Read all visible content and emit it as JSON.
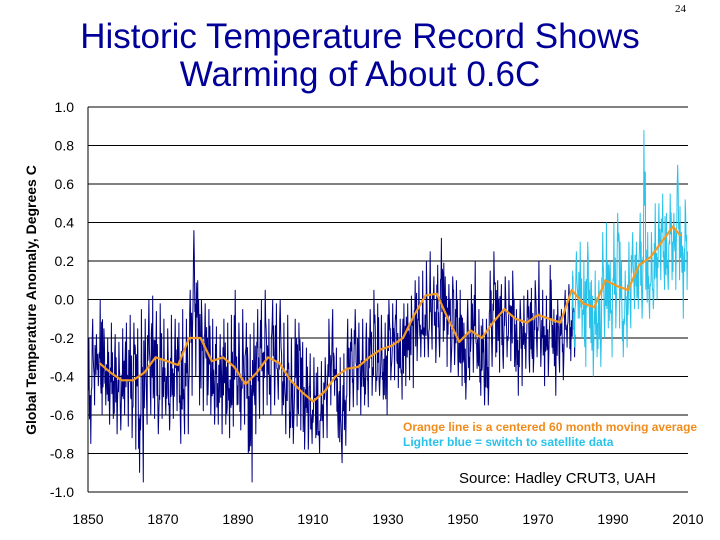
{
  "slide_number": "24",
  "title_lines": [
    "Historic Temperature Record Shows",
    "Warming of About 0.6C"
  ],
  "colors": {
    "title": "#000099",
    "monthly_series": "#000080",
    "satellite_series": "#28c2ea",
    "moving_average": "#f39a23",
    "gridline": "#000000"
  },
  "chart_data": {
    "type": "line",
    "title": "",
    "xlabel": "",
    "ylabel": "Global Temperature Anomaly, Degrees C",
    "xlim": [
      1850,
      2010
    ],
    "ylim": [
      -1.0,
      1.0
    ],
    "x_ticks": [
      "1850",
      "1870",
      "1890",
      "1910",
      "1930",
      "1950",
      "1970",
      "1990",
      "2010"
    ],
    "y_ticks": [
      "1.0",
      "0.8",
      "0.6",
      "0.4",
      "0.2",
      "0.0",
      "-0.2",
      "-0.4",
      "-0.6",
      "-0.8",
      "-1.0"
    ],
    "grid": "horizontal",
    "annotations": [
      "Orange line is a centered 60 month moving average",
      "Lighter blue = switch to satellite data",
      "Source:  Hadley CRUT3, UAH"
    ],
    "series": [
      {
        "name": "Hadley CRUT3 monthly",
        "x": [
          1850,
          1851,
          1852,
          1853,
          1854,
          1855,
          1856,
          1857,
          1858,
          1859,
          1860,
          1861,
          1862,
          1863,
          1864,
          1865,
          1866,
          1867,
          1868,
          1869,
          1870,
          1871,
          1872,
          1873,
          1874,
          1875,
          1876,
          1877,
          1878,
          1879,
          1880,
          1881,
          1882,
          1883,
          1884,
          1885,
          1886,
          1887,
          1888,
          1889,
          1890,
          1891,
          1892,
          1893,
          1894,
          1895,
          1896,
          1897,
          1898,
          1899,
          1900,
          1901,
          1902,
          1903,
          1904,
          1905,
          1906,
          1907,
          1908,
          1909,
          1910,
          1911,
          1912,
          1913,
          1914,
          1915,
          1916,
          1917,
          1918,
          1919,
          1920,
          1921,
          1922,
          1923,
          1924,
          1925,
          1926,
          1927,
          1928,
          1929,
          1930,
          1931,
          1932,
          1933,
          1934,
          1935,
          1936,
          1937,
          1938,
          1939,
          1940,
          1941,
          1942,
          1943,
          1944,
          1945,
          1946,
          1947,
          1948,
          1949,
          1950,
          1951,
          1952,
          1953,
          1954,
          1955,
          1956,
          1957,
          1958,
          1959,
          1960,
          1961,
          1962,
          1963,
          1964,
          1965,
          1966,
          1967,
          1968,
          1969,
          1970,
          1971,
          1972,
          1973,
          1974,
          1975,
          1976,
          1977,
          1978,
          1979
        ],
        "min": [
          -0.75,
          -0.55,
          -0.45,
          -0.6,
          -0.55,
          -0.65,
          -0.62,
          -0.7,
          -0.68,
          -0.6,
          -0.66,
          -0.72,
          -0.78,
          -0.9,
          -0.95,
          -0.65,
          -0.6,
          -0.62,
          -0.7,
          -0.62,
          -0.6,
          -0.68,
          -0.62,
          -0.58,
          -0.75,
          -0.7,
          -0.7,
          -0.5,
          -0.4,
          -0.55,
          -0.58,
          -0.55,
          -0.6,
          -0.65,
          -0.65,
          -0.7,
          -0.65,
          -0.72,
          -0.66,
          -0.55,
          -0.68,
          -0.65,
          -0.8,
          -0.95,
          -0.7,
          -0.62,
          -0.6,
          -0.55,
          -0.6,
          -0.55,
          -0.52,
          -0.6,
          -0.7,
          -0.72,
          -0.75,
          -0.66,
          -0.68,
          -0.78,
          -0.78,
          -0.75,
          -0.72,
          -0.8,
          -0.72,
          -0.72,
          -0.55,
          -0.5,
          -0.72,
          -0.85,
          -0.76,
          -0.58,
          -0.56,
          -0.55,
          -0.6,
          -0.55,
          -0.56,
          -0.5,
          -0.48,
          -0.5,
          -0.52,
          -0.6,
          -0.42,
          -0.42,
          -0.46,
          -0.52,
          -0.45,
          -0.42,
          -0.46,
          -0.32,
          -0.3,
          -0.3,
          -0.3,
          -0.26,
          -0.33,
          -0.3,
          -0.22,
          -0.35,
          -0.38,
          -0.34,
          -0.4,
          -0.45,
          -0.52,
          -0.42,
          -0.38,
          -0.36,
          -0.5,
          -0.55,
          -0.55,
          -0.35,
          -0.3,
          -0.38,
          -0.36,
          -0.3,
          -0.32,
          -0.35,
          -0.5,
          -0.45,
          -0.36,
          -0.38,
          -0.38,
          -0.3,
          -0.35,
          -0.45,
          -0.4,
          -0.25,
          -0.5,
          -0.38,
          -0.42,
          -0.25,
          -0.32,
          -0.3
        ],
        "max": [
          -0.2,
          -0.1,
          -0.18,
          0.0,
          -0.15,
          -0.2,
          -0.12,
          -0.18,
          -0.22,
          -0.15,
          -0.12,
          -0.08,
          -0.12,
          -0.15,
          -0.05,
          -0.1,
          0.0,
          0.02,
          -0.06,
          -0.02,
          -0.1,
          -0.15,
          -0.08,
          -0.1,
          -0.12,
          -0.05,
          -0.1,
          0.05,
          0.36,
          0.1,
          0.0,
          -0.02,
          -0.05,
          -0.1,
          -0.14,
          -0.18,
          -0.1,
          -0.12,
          -0.08,
          0.05,
          -0.12,
          -0.05,
          -0.12,
          -0.18,
          -0.12,
          -0.05,
          0.0,
          0.05,
          -0.1,
          0.0,
          -0.02,
          0.0,
          -0.12,
          -0.08,
          -0.2,
          -0.1,
          -0.12,
          -0.22,
          -0.25,
          -0.28,
          -0.3,
          -0.35,
          -0.32,
          -0.3,
          -0.1,
          -0.05,
          -0.25,
          -0.3,
          -0.28,
          -0.1,
          -0.15,
          -0.05,
          -0.12,
          -0.1,
          -0.12,
          -0.05,
          0.05,
          -0.02,
          -0.08,
          -0.12,
          0.0,
          -0.02,
          0.0,
          -0.1,
          -0.02,
          -0.02,
          0.02,
          0.1,
          0.12,
          0.15,
          0.2,
          0.25,
          0.12,
          0.18,
          0.32,
          0.12,
          0.08,
          0.12,
          0.1,
          0.05,
          -0.12,
          0.0,
          0.08,
          0.2,
          -0.05,
          -0.1,
          -0.1,
          0.15,
          0.25,
          0.1,
          0.08,
          0.12,
          0.1,
          0.15,
          -0.05,
          0.0,
          0.02,
          0.05,
          0.06,
          0.1,
          0.2,
          0.05,
          0.02,
          0.18,
          -0.05,
          0.0,
          -0.05,
          0.05,
          0.08,
          0.12
        ]
      },
      {
        "name": "UAH satellite monthly",
        "x": [
          1979,
          1980,
          1981,
          1982,
          1983,
          1984,
          1985,
          1986,
          1987,
          1988,
          1989,
          1990,
          1991,
          1992,
          1993,
          1994,
          1995,
          1996,
          1997,
          1998,
          1999,
          2000,
          2001,
          2002,
          2003,
          2004,
          2005,
          2006,
          2007,
          2008,
          2009
        ],
        "min": [
          -0.25,
          -0.1,
          -0.2,
          -0.35,
          -0.15,
          -0.4,
          -0.3,
          -0.35,
          -0.2,
          -0.15,
          -0.3,
          -0.15,
          -0.15,
          -0.3,
          -0.25,
          -0.15,
          -0.05,
          -0.05,
          -0.1,
          0.05,
          -0.1,
          -0.05,
          0.0,
          0.1,
          0.05,
          0.05,
          0.1,
          0.05,
          0.1,
          -0.1,
          0.05
        ],
        "max": [
          0.15,
          0.25,
          0.3,
          0.2,
          0.3,
          0.1,
          0.15,
          0.1,
          0.35,
          0.4,
          0.2,
          0.4,
          0.45,
          0.2,
          0.15,
          0.3,
          0.35,
          0.3,
          0.45,
          0.88,
          0.35,
          0.35,
          0.5,
          0.5,
          0.55,
          0.45,
          0.55,
          0.45,
          0.7,
          0.35,
          0.52
        ]
      },
      {
        "name": "60 month moving average",
        "x": [
          1853,
          1856,
          1859,
          1862,
          1865,
          1868,
          1871,
          1874,
          1877,
          1880,
          1883,
          1886,
          1889,
          1892,
          1895,
          1898,
          1901,
          1904,
          1907,
          1910,
          1913,
          1916,
          1919,
          1922,
          1925,
          1928,
          1931,
          1934,
          1937,
          1940,
          1943,
          1946,
          1949,
          1952,
          1955,
          1958,
          1961,
          1964,
          1967,
          1970,
          1973,
          1976,
          1979,
          1982,
          1985,
          1988,
          1991,
          1994,
          1997,
          2000,
          2003,
          2006,
          2008
        ],
        "y": [
          -0.33,
          -0.38,
          -0.42,
          -0.42,
          -0.38,
          -0.3,
          -0.32,
          -0.34,
          -0.2,
          -0.2,
          -0.32,
          -0.3,
          -0.35,
          -0.44,
          -0.38,
          -0.3,
          -0.33,
          -0.42,
          -0.48,
          -0.53,
          -0.48,
          -0.4,
          -0.36,
          -0.35,
          -0.3,
          -0.26,
          -0.24,
          -0.2,
          -0.08,
          0.02,
          0.03,
          -0.1,
          -0.22,
          -0.16,
          -0.2,
          -0.12,
          -0.05,
          -0.1,
          -0.12,
          -0.08,
          -0.1,
          -0.12,
          0.05,
          -0.02,
          -0.04,
          0.1,
          0.07,
          0.05,
          0.18,
          0.22,
          0.3,
          0.38,
          0.33
        ]
      }
    ]
  }
}
